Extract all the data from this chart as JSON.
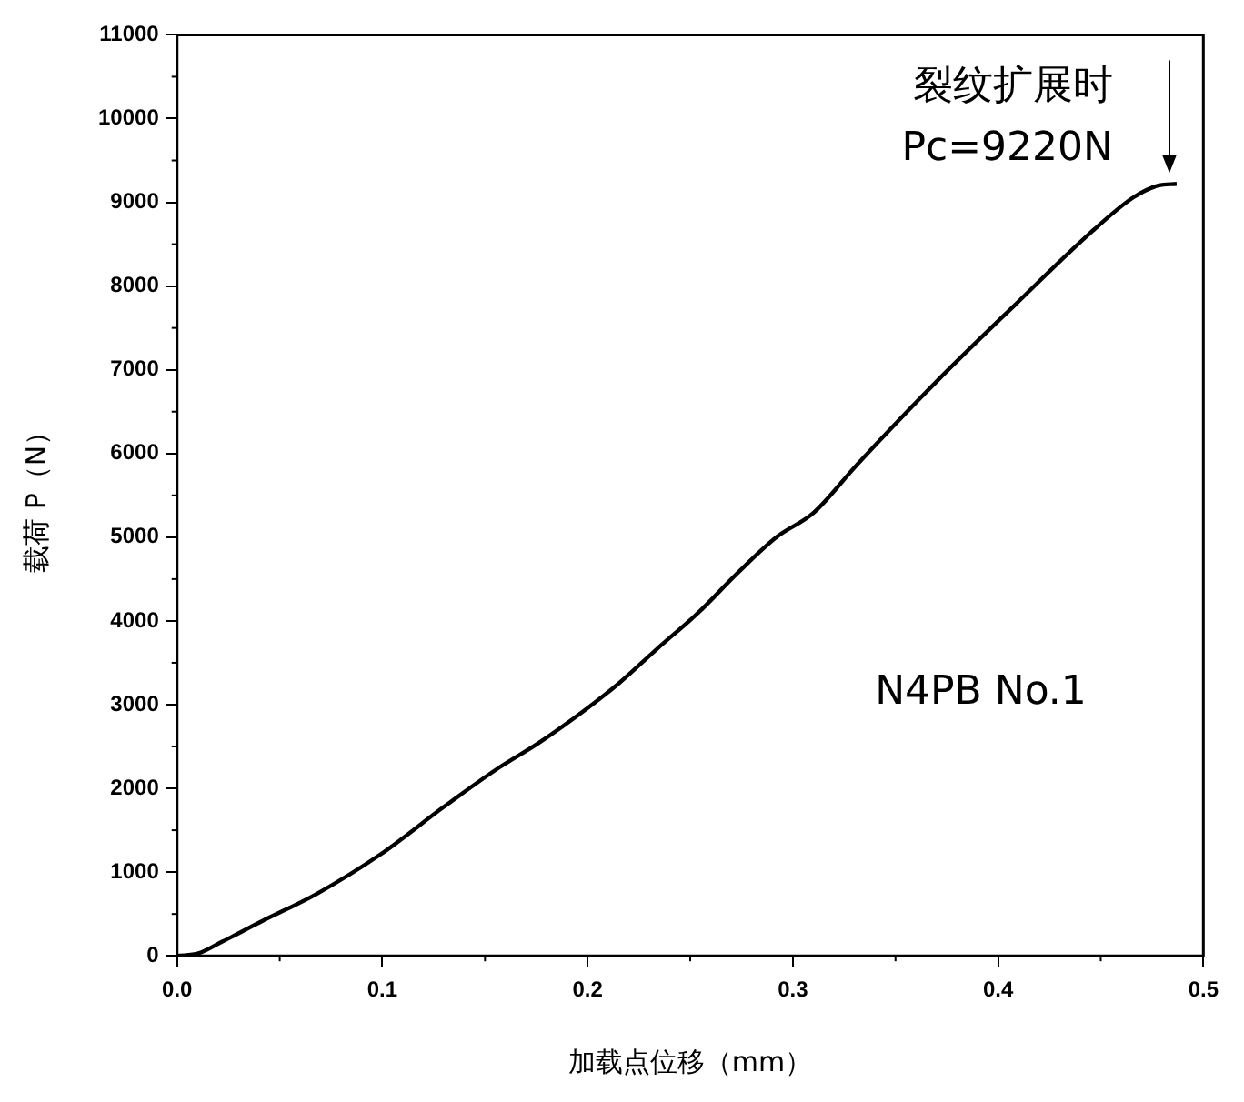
{
  "chart_data": {
    "type": "line",
    "xlabel": "加载点位移（mm）",
    "ylabel": "载荷 P（N）",
    "x": [
      0,
      0.0104,
      0.022,
      0.041,
      0.068,
      0.099,
      0.13,
      0.157,
      0.176,
      0.2,
      0.215,
      0.234,
      0.254,
      0.273,
      0.292,
      0.31,
      0.331,
      0.37,
      0.408,
      0.447,
      0.466,
      0.478,
      0.487
    ],
    "series": [
      {
        "color": "#000000",
        "values": [
          0,
          30,
          170,
          410,
          740,
          1210,
          1780,
          2250,
          2540,
          2960,
          3250,
          3670,
          4100,
          4570,
          5000,
          5290,
          5860,
          6860,
          7770,
          8680,
          9060,
          9200,
          9220
        ]
      }
    ],
    "xlim": [
      0,
      0.5
    ],
    "xticks": [
      {
        "value": 0,
        "label": "0.0"
      },
      0.1,
      0.2,
      0.3,
      0.4,
      0.5
    ],
    "ylim": [
      0,
      11000
    ],
    "yticks": [
      0,
      1000,
      2000,
      3000,
      4000,
      5000,
      6000,
      7000,
      8000,
      9000,
      10000,
      11000
    ],
    "grid": false,
    "legend": false,
    "marker": "none",
    "line_style": "solid",
    "annotations": [
      {
        "text": "裂纹扩展时\nPc=9220N",
        "x": 0.487,
        "y": 9220
      },
      "N4PB No.1"
    ]
  }
}
